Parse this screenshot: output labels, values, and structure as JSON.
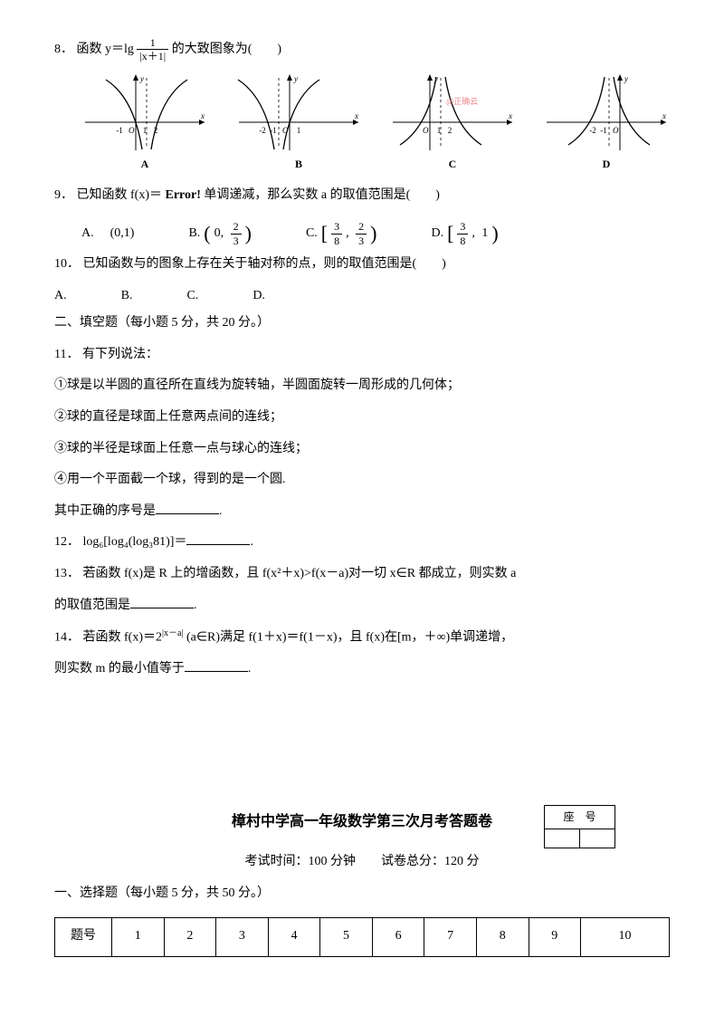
{
  "q8": {
    "number": "8．",
    "prefix": "函数 ",
    "func_lhs": "y＝lg",
    "frac_num": "1",
    "frac_den": "|x＋1|",
    "suffix": "的大致图象为(　　)",
    "graphs": [
      {
        "label": "A",
        "type": "down",
        "dash_x": 0.5,
        "ticks": [
          "-1",
          "1",
          "2"
        ],
        "tick_x": [
          -18,
          10,
          22
        ],
        "ox": 0,
        "watermark": null
      },
      {
        "label": "B",
        "type": "down",
        "dash_x": -0.5,
        "ticks": [
          "-2",
          "-1",
          "1"
        ],
        "tick_x": [
          -30,
          -18,
          10
        ],
        "ox": 0,
        "watermark": null
      },
      {
        "label": "C",
        "type": "up",
        "dash_x": 0.5,
        "ticks": [
          "1",
          "2"
        ],
        "tick_x": [
          10,
          22
        ],
        "ox": 0,
        "watermark": "@正确云"
      },
      {
        "label": "D",
        "type": "up",
        "dash_x": -0.5,
        "ticks": [
          "-2",
          "-1"
        ],
        "tick_x": [
          -30,
          -18
        ],
        "ox": 0,
        "watermark": null
      }
    ]
  },
  "q9": {
    "number": "9．",
    "text1": "已知函数 f(x)＝",
    "error": "Error!",
    "text2": "单调递减，那么实数 a 的取值范围是(　　)",
    "opts": {
      "A": "(0,1)",
      "B": {
        "open": "(",
        "num1": "0",
        "num2": "2",
        "den2": "3",
        "close": ")"
      },
      "C": {
        "open": "[",
        "num1": "3",
        "den1": "8",
        "num2": "2",
        "den2": "3",
        "close": ")"
      },
      "D": {
        "open": "[",
        "num1": "3",
        "den1": "8",
        "val2": "1",
        "close": ")"
      }
    }
  },
  "q10": {
    "number": "10．",
    "text": "已知函数与的图象上存在关于轴对称的点，则的取值范围是(　　)",
    "labels": [
      "A.",
      "B.",
      "C.",
      "D."
    ]
  },
  "sec2": "二、填空题（每小题 5 分，共 20 分。）",
  "q11": {
    "number": "11．",
    "intro": "有下列说法：",
    "items": [
      "①球是以半圆的直径所在直线为旋转轴，半圆面旋转一周形成的几何体；",
      "②球的直径是球面上任意两点间的连线；",
      "③球的半径是球面上任意一点与球心的连线；",
      "④用一个平面截一个球，得到的是一个圆."
    ],
    "tail": "其中正确的序号是"
  },
  "q12": {
    "number": "12．",
    "expr": "log₆[log₄(log₃81)]＝"
  },
  "q13": {
    "number": "13．",
    "text1": "若函数 f(x)是 R 上的增函数，且 f(x²＋x)>f(x－a)对一切 x∈R 都成立，则实数 a",
    "text2": "的取值范围是"
  },
  "q14": {
    "number": "14．",
    "text1": "若函数 f(x)＝2",
    "exp": "|x－a|",
    "text2": "(a∈R)满足 f(1＋x)＝f(1－x)，且 f(x)在[m，＋∞)单调递增，",
    "text3": "则实数 m 的最小值等于"
  },
  "header": {
    "title": "樟村中学高一年级数学第三次月考答题卷",
    "time": "考试时间：100 分钟",
    "total": "试卷总分：120 分",
    "seat": "座　号"
  },
  "sec1": "一、选择题（每小题 5 分，共 50 分。）",
  "table": {
    "row_label": "题号",
    "nums": [
      "1",
      "2",
      "3",
      "4",
      "5",
      "6",
      "7",
      "8",
      "9",
      "10"
    ]
  },
  "axis": {
    "x": "x",
    "y": "y",
    "o": "O"
  }
}
